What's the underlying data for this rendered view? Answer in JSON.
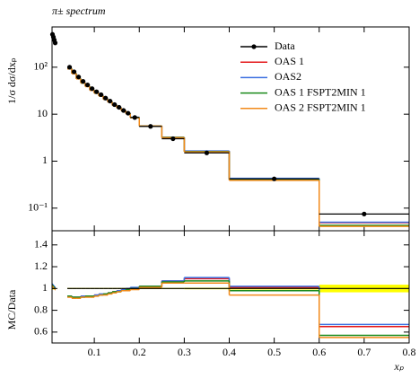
{
  "chart_data": {
    "type": "histogram",
    "title": "π± spectrum",
    "ylabel": "1/σ dσ/dxₚ",
    "xlabel": "xₚ",
    "ratio_ylabel": "MC/Data",
    "bins": [
      0.006,
      0.008,
      0.01,
      0.012,
      0.014,
      0.04,
      0.05,
      0.06,
      0.07,
      0.08,
      0.09,
      0.1,
      0.11,
      0.12,
      0.13,
      0.14,
      0.15,
      0.16,
      0.17,
      0.18,
      0.2,
      0.25,
      0.3,
      0.4,
      0.6,
      0.8
    ],
    "xlim": [
      0.006,
      0.8
    ],
    "xticks": [
      0.1,
      0.2,
      0.3,
      0.4,
      0.5,
      0.6,
      0.7,
      0.8
    ],
    "log_y": true,
    "ylim": [
      0.033,
      720
    ],
    "yticks": [
      {
        "value": 0.1,
        "label": "10⁻¹"
      },
      1,
      10,
      {
        "value": 100,
        "label": "10²"
      }
    ],
    "ratio_ylim": [
      0.5,
      1.53
    ],
    "ratio_yticks": [
      0.6,
      0.8,
      1,
      1.2,
      1.4
    ],
    "legend": "upper right",
    "band_color": "#ffff00",
    "series": [
      {
        "name": "Data",
        "color": "#000000",
        "marker": true,
        "values": [
          500,
          440,
          380,
          330,
          null,
          100,
          80,
          62,
          50,
          42,
          35,
          30,
          26,
          22,
          19,
          16,
          14,
          12,
          10.5,
          8.5,
          5.5,
          3.0,
          1.5,
          0.42,
          0.075
        ],
        "ratio_values": [
          1,
          1,
          1,
          1,
          null,
          1,
          1,
          1,
          1,
          1,
          1,
          1,
          1,
          1,
          1,
          1,
          1,
          1,
          1,
          1,
          1,
          1,
          1,
          1,
          1
        ],
        "band_low": [
          0.99,
          0.99,
          0.99,
          0.99,
          null,
          0.995,
          0.995,
          0.995,
          0.995,
          0.995,
          0.995,
          0.995,
          0.995,
          0.995,
          0.995,
          0.995,
          0.995,
          0.995,
          0.995,
          0.995,
          0.995,
          0.995,
          0.993,
          0.99,
          0.965
        ],
        "band_high": [
          1.01,
          1.01,
          1.01,
          1.01,
          null,
          1.005,
          1.005,
          1.005,
          1.005,
          1.005,
          1.005,
          1.005,
          1.005,
          1.005,
          1.005,
          1.005,
          1.005,
          1.005,
          1.005,
          1.005,
          1.005,
          1.005,
          1.007,
          1.01,
          1.035
        ]
      },
      {
        "name": "OAS 1",
        "color": "#e41a1c",
        "values": [
          515,
          449,
          384,
          330,
          null,
          93,
          73.6,
          57,
          46.5,
          39,
          32.6,
          28.2,
          24.4,
          20.9,
          18.2,
          15.5,
          13.7,
          11.9,
          10.4,
          8.5,
          5.6,
          3.2,
          1.64,
          0.42,
          0.049
        ],
        "ratio_values": [
          1.03,
          1.02,
          1.01,
          1.0,
          null,
          0.93,
          0.92,
          0.92,
          0.93,
          0.93,
          0.93,
          0.94,
          0.94,
          0.95,
          0.96,
          0.97,
          0.98,
          0.99,
          0.99,
          1.0,
          1.02,
          1.07,
          1.09,
          1.01,
          0.65
        ]
      },
      {
        "name": "OAS2",
        "color": "#3b6fe0",
        "values": [
          520,
          453,
          388,
          333,
          null,
          93,
          73.6,
          57,
          46.5,
          39,
          32.6,
          28.2,
          24.7,
          20.9,
          18.2,
          15.5,
          13.7,
          11.9,
          10.5,
          8.6,
          5.6,
          3.2,
          1.65,
          0.43,
          0.05
        ],
        "ratio_values": [
          1.04,
          1.03,
          1.02,
          1.01,
          null,
          0.93,
          0.92,
          0.92,
          0.93,
          0.93,
          0.93,
          0.94,
          0.95,
          0.95,
          0.96,
          0.97,
          0.98,
          0.99,
          1.0,
          1.01,
          1.02,
          1.07,
          1.1,
          1.02,
          0.67
        ]
      },
      {
        "name": "OAS 1 FSPT2MIN 1",
        "color": "#1a8a1a",
        "values": [
          515,
          449,
          384,
          330,
          null,
          93,
          73.6,
          57,
          46,
          39,
          32.6,
          27.9,
          24.4,
          20.9,
          18.2,
          15.5,
          13.6,
          11.8,
          10.4,
          8.5,
          5.6,
          3.2,
          1.6,
          0.41,
          0.043
        ],
        "ratio_values": [
          1.03,
          1.02,
          1.01,
          1.0,
          null,
          0.93,
          0.92,
          0.92,
          0.92,
          0.93,
          0.93,
          0.93,
          0.94,
          0.95,
          0.96,
          0.97,
          0.97,
          0.98,
          0.99,
          1.0,
          1.02,
          1.06,
          1.07,
          0.98,
          0.57
        ]
      },
      {
        "name": "OAS 2 FSPT2MIN 1",
        "color": "#f28a1a",
        "values": [
          510,
          444,
          380,
          327,
          null,
          92,
          72.8,
          56.4,
          46,
          38.6,
          32.2,
          27.9,
          24.4,
          20.7,
          18.1,
          15.4,
          13.6,
          11.8,
          10.3,
          8.4,
          5.6,
          3.15,
          1.58,
          0.39,
          0.041
        ],
        "ratio_values": [
          1.02,
          1.01,
          1.0,
          0.99,
          null,
          0.92,
          0.91,
          0.91,
          0.92,
          0.92,
          0.92,
          0.93,
          0.94,
          0.94,
          0.95,
          0.96,
          0.97,
          0.98,
          0.98,
          0.99,
          1.01,
          1.05,
          1.05,
          0.94,
          0.55
        ]
      }
    ]
  }
}
